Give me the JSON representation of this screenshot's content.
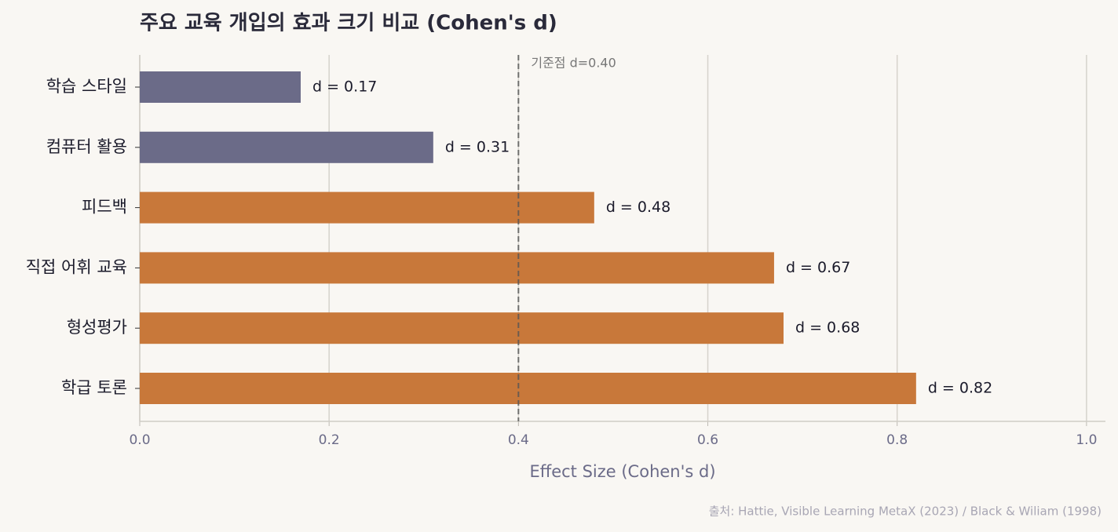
{
  "chart_data": {
    "type": "barh",
    "title": "주요 교육 개입의 효과 크기 비교 (Cohen's d)",
    "categories": [
      "학습 스타일",
      "컴퓨터 활용",
      "피드백",
      "직접 어휘 교육",
      "형성평가",
      "학급 토론"
    ],
    "values": [
      0.17,
      0.31,
      0.48,
      0.67,
      0.68,
      0.82
    ],
    "value_labels": [
      "d = 0.17",
      "d = 0.31",
      "d = 0.48",
      "d = 0.67",
      "d = 0.68",
      "d = 0.82"
    ],
    "colors": [
      "#6b6b88",
      "#6b6b88",
      "#c8783a",
      "#c8783a",
      "#c8783a",
      "#c8783a"
    ],
    "xlabel": "Effect Size (Cohen's d)",
    "xlim": [
      0,
      1.02
    ],
    "xticks": [
      {
        "value": 0,
        "label": "0.0"
      },
      0.2,
      0.4,
      0.6,
      0.8,
      {
        "value": 1,
        "label": "1.0"
      }
    ],
    "grid": true,
    "reference": {
      "value": 0.4,
      "label": "기준점 d=0.40"
    },
    "source": "출처: Hattie, Visible Learning MetaX (2023) / Black & Wiliam (1998)"
  }
}
